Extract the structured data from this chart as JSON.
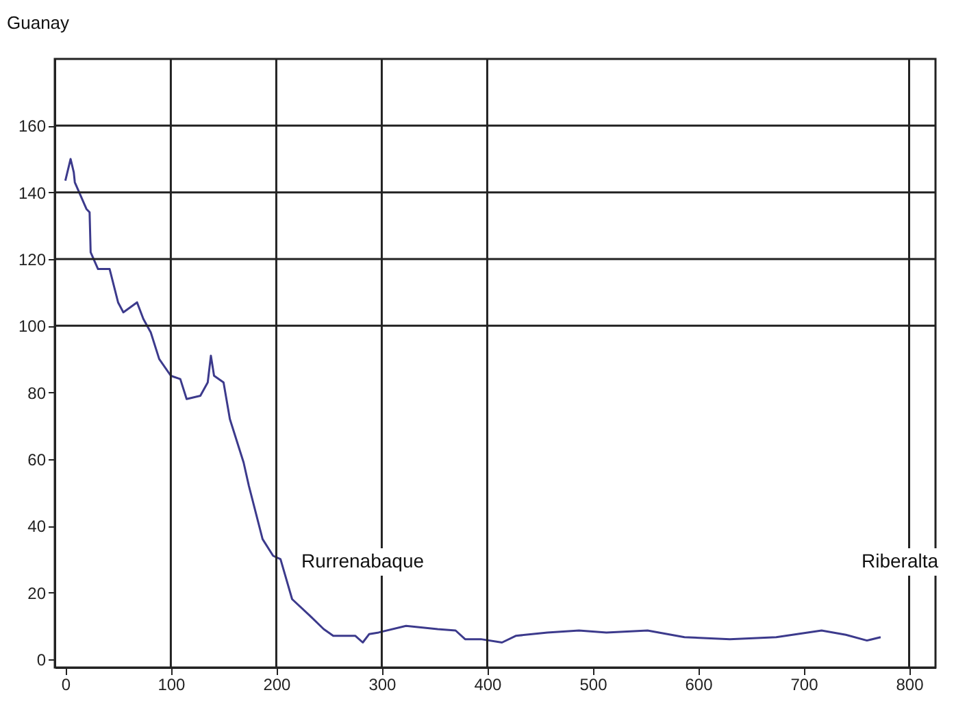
{
  "chart_data": {
    "type": "line",
    "x": [
      0,
      5,
      8,
      9,
      20,
      23,
      24,
      31,
      42,
      50,
      55,
      68,
      74,
      81,
      89,
      100,
      109,
      115,
      128,
      135,
      138,
      141,
      150,
      156,
      169,
      174,
      187,
      197,
      204,
      215,
      232,
      245,
      254,
      275,
      282,
      288,
      297,
      323,
      353,
      370,
      379,
      394,
      414,
      427,
      457,
      487,
      513,
      552,
      587,
      630,
      674,
      717,
      740,
      760,
      773
    ],
    "series": [
      {
        "color": "#3c3a8c",
        "values": [
          143.5,
          150,
          146,
          143,
          135,
          134,
          122,
          117,
          117,
          107,
          104,
          107,
          102,
          98,
          90,
          85,
          84,
          78,
          79,
          83,
          91,
          85,
          83,
          72,
          59,
          52,
          36,
          31,
          30,
          18,
          13,
          9,
          7,
          7,
          5,
          7.5,
          8,
          10,
          9,
          8.6,
          6,
          6,
          5,
          7,
          8,
          8.6,
          8,
          8.6,
          6.6,
          6,
          6.6,
          8.6,
          7.3,
          5.6,
          6.6
        ]
      }
    ],
    "xlim": [
      -10,
      825
    ],
    "ylim": [
      -2.5,
      180
    ],
    "xticks": [
      0,
      100,
      200,
      300,
      400,
      500,
      600,
      700,
      800
    ],
    "yticks": [
      0,
      20,
      40,
      60,
      80,
      100,
      120,
      140,
      160
    ],
    "grid": false,
    "ref_lines": [
      {
        "axis": "y",
        "value": 100,
        "color": "#222222"
      },
      {
        "axis": "y",
        "value": 120,
        "color": "#222222"
      },
      {
        "axis": "y",
        "value": 140,
        "color": "#222222"
      },
      {
        "axis": "y",
        "value": 160,
        "color": "#222222"
      },
      {
        "axis": "x",
        "value": 100,
        "color": "#222222"
      },
      {
        "axis": "x",
        "value": 200,
        "color": "#222222"
      },
      {
        "axis": "x",
        "value": 300,
        "color": "#222222"
      },
      {
        "axis": "x",
        "value": 400,
        "color": "#222222"
      },
      {
        "axis": "x",
        "value": 800,
        "color": "#222222"
      }
    ],
    "annotations": [
      "Guanay",
      "Rurrenabaque",
      "Riberalta"
    ]
  }
}
